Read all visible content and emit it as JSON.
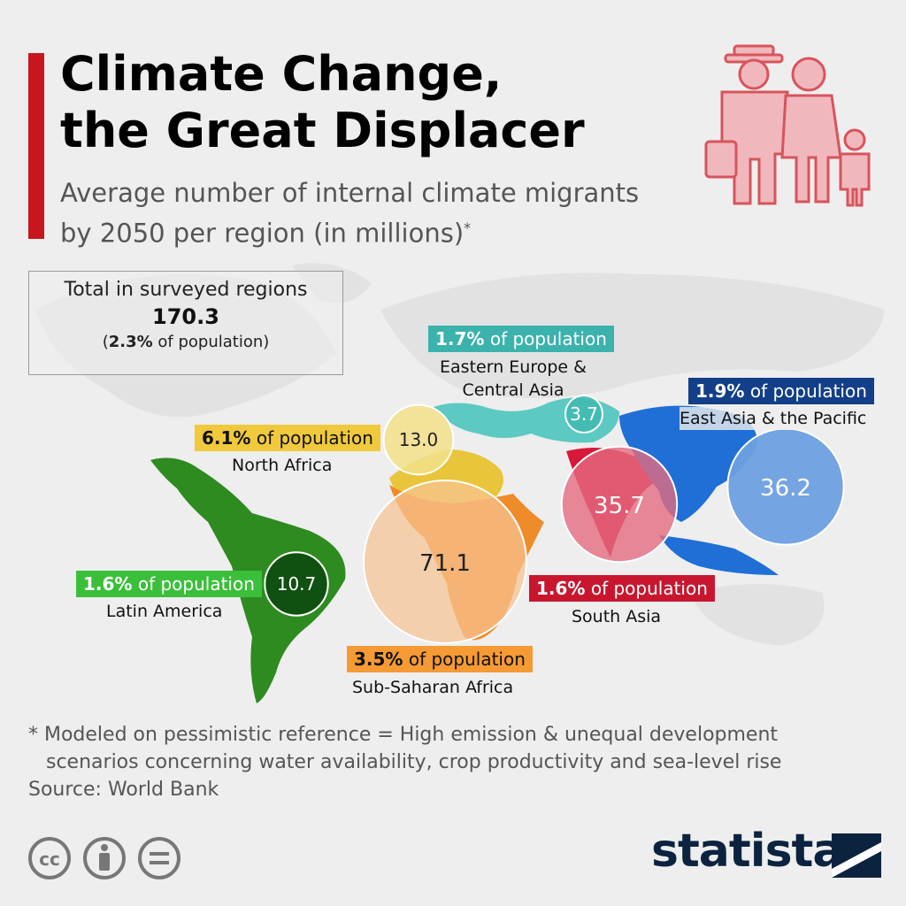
{
  "header": {
    "title_line1": "Climate Change,",
    "title_line2": "the Great Displacer",
    "subtitle_line1": "Average number of internal climate migrants",
    "subtitle_line2": "by 2050 per region (in millions)",
    "subtitle_mark": "*"
  },
  "total": {
    "label": "Total in surveyed regions",
    "value": "170.3",
    "pct_open": "(",
    "pct_value": "2.3%",
    "pct_rest": " of population)"
  },
  "chart_data": {
    "type": "bubble-map",
    "unit": "millions",
    "regions": [
      {
        "key": "latam",
        "name": "Latin America",
        "value": 10.7,
        "value_label": "10.7",
        "pct": "1.6%",
        "pct_text": " of population",
        "color": "#2e8b1f",
        "bubble_color": "#0f4d10",
        "tag_color": "#3bbf3a"
      },
      {
        "key": "nafrica",
        "name": "North Africa",
        "value": 13.0,
        "value_label": "13.0",
        "pct": "6.1%",
        "pct_text": " of population",
        "color": "#e8c53a",
        "bubble_color": "#f2e08a",
        "tag_color": "#f0c93c"
      },
      {
        "key": "ssa",
        "name": "Sub-Saharan Africa",
        "value": 71.1,
        "value_label": "71.1",
        "pct": "3.5%",
        "pct_text": " of population",
        "color": "#ef8c2a",
        "bubble_color": "#f6c493",
        "tag_color": "#f59a34"
      },
      {
        "key": "eeca",
        "name": "Eastern Europe & Central Asia",
        "name_line1": "Eastern Europe &",
        "name_line2": "Central Asia",
        "value": 3.7,
        "value_label": "3.7",
        "pct": "1.7%",
        "pct_text": " of population",
        "color": "#5cc9c2",
        "bubble_color": "#3fbab2",
        "tag_color": "#3bb3ac"
      },
      {
        "key": "sasia",
        "name": "South Asia",
        "value": 35.7,
        "value_label": "35.7",
        "pct": "1.6%",
        "pct_text": " of population",
        "color": "#d8183a",
        "bubble_color": "#e36b80",
        "tag_color": "#c8162f"
      },
      {
        "key": "eap",
        "name": "East Asia & the Pacific",
        "value": 36.2,
        "value_label": "36.2",
        "pct": "1.9%",
        "pct_text": " of population",
        "color": "#1f6fd6",
        "bubble_color": "#6d9fe0",
        "tag_color": "#123f87"
      }
    ]
  },
  "footer": {
    "footnote_line1": "* Modeled on pessimistic reference = High emission & unequal development",
    "footnote_line2": "scenarios concerning water availability, crop productivity and sea-level rise",
    "source": "Source: World Bank",
    "brand": "statista"
  },
  "icons": [
    "migrant-family-icon",
    "cc-license-icon",
    "attribution-icon",
    "no-derivatives-icon",
    "statista-logo-mark-icon"
  ]
}
